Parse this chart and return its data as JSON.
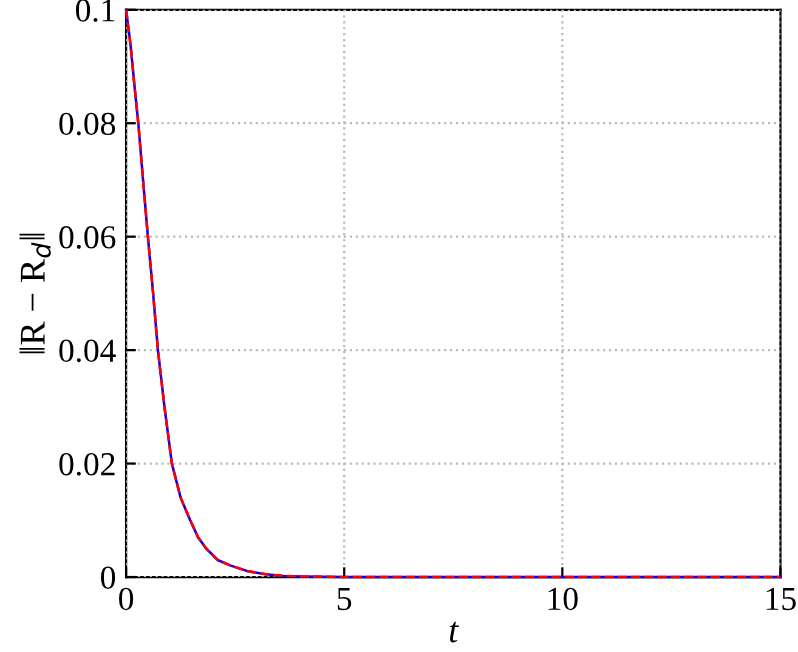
{
  "chart_data": {
    "type": "line",
    "xlabel": "t",
    "ylabel": "‖R − R$_{d}$‖",
    "x": [
      0,
      0.1,
      0.2,
      0.28,
      0.4,
      0.5,
      0.62,
      0.73,
      0.88,
      1.05,
      1.25,
      1.47,
      1.65,
      1.84,
      2.1,
      2.4,
      2.8,
      3.2,
      3.6,
      4,
      5,
      7,
      10,
      15
    ],
    "series": [
      {
        "color": "#0000ff",
        "line_style": "solid",
        "values": [
          0.1,
          0.094,
          0.086,
          0.08,
          0.069,
          0.06,
          0.05,
          0.04,
          0.03,
          0.02,
          0.014,
          0.01,
          0.007,
          0.005,
          0.003,
          0.002,
          0.001,
          0.0005,
          0.0002,
          0.0001,
          0,
          0,
          0,
          0
        ]
      },
      {
        "color": "#ff0000",
        "line_style": "dashed",
        "values": [
          0.1,
          0.094,
          0.086,
          0.08,
          0.069,
          0.06,
          0.05,
          0.04,
          0.03,
          0.02,
          0.014,
          0.01,
          0.007,
          0.005,
          0.003,
          0.002,
          0.001,
          0.0005,
          0.0002,
          0.0001,
          0,
          0,
          0,
          0
        ]
      }
    ],
    "xlim": [
      0,
      15
    ],
    "xticks": [
      0,
      5,
      10,
      15
    ],
    "ylim": [
      0,
      0.1
    ],
    "yticks": [
      0,
      0.02,
      0.04,
      0.06,
      0.08,
      0.1
    ],
    "grid": true,
    "legend": false
  }
}
